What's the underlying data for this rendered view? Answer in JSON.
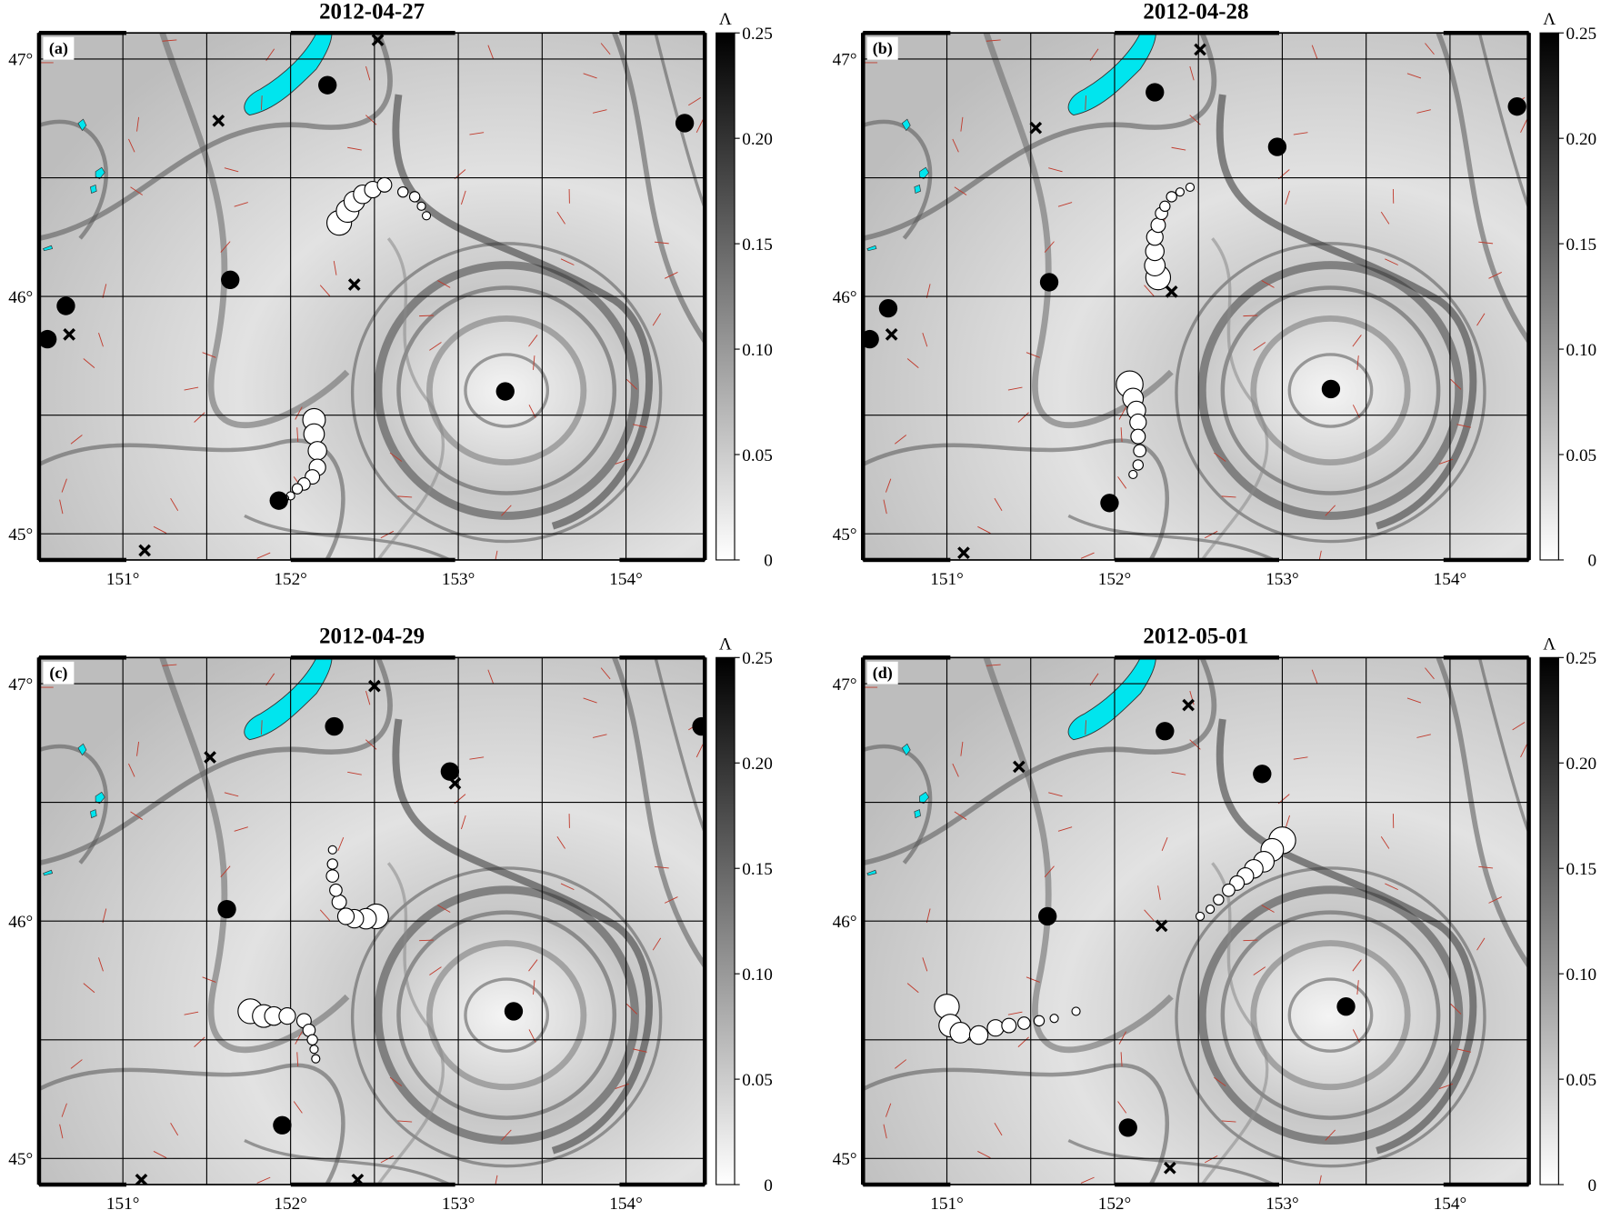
{
  "xlim": [
    150.5,
    154.47
  ],
  "ylim": [
    44.89,
    47.11
  ],
  "xticks": [
    {
      "value": 151,
      "label": "151°"
    },
    {
      "value": 152,
      "label": "152°"
    },
    {
      "value": 153,
      "label": "153°"
    },
    {
      "value": 154,
      "label": "154°"
    }
  ],
  "yticks": [
    {
      "value": 45,
      "label": "45°"
    },
    {
      "value": 46,
      "label": "46°"
    },
    {
      "value": 47,
      "label": "47°"
    }
  ],
  "xgrid": [
    151,
    151.5,
    152,
    152.5,
    153,
    153.5,
    154
  ],
  "ygrid": [
    45,
    45.5,
    46,
    46.5,
    47
  ],
  "colorbar": {
    "label": "Λ",
    "lim": [
      0,
      0.25
    ],
    "ticks": [
      0,
      0.05,
      {
        "value": 0.1,
        "label": "0.10"
      },
      0.15,
      {
        "value": 0.2,
        "label": "0.20"
      },
      0.25
    ]
  },
  "panels": [
    {
      "title": "2012-04-27",
      "label": "(a)",
      "dots": {
        "lon": [
          152.22,
          154.35,
          151.64,
          150.66,
          150.55,
          153.28,
          151.93
        ],
        "lat": [
          46.89,
          46.73,
          46.07,
          45.96,
          45.82,
          45.6,
          45.14
        ]
      },
      "crosses": {
        "lon": [
          152.52,
          151.57,
          152.38,
          150.68,
          151.13
        ],
        "lat": [
          47.08,
          46.74,
          46.05,
          45.84,
          44.93
        ]
      },
      "chains": [
        {
          "lon": [
            152.29,
            152.34,
            152.38,
            152.43,
            152.49,
            152.56,
            152.67,
            152.74,
            152.78,
            152.81
          ],
          "lat": [
            46.31,
            46.36,
            46.4,
            46.43,
            46.45,
            46.47,
            46.44,
            46.42,
            46.38,
            46.34
          ],
          "sizes": [
            12,
            11,
            10,
            9,
            8,
            7,
            5,
            5,
            4,
            4
          ]
        },
        {
          "lon": [
            152.14,
            152.14,
            152.16,
            152.16,
            152.13,
            152.08,
            152.04,
            152,
            151.97
          ],
          "lat": [
            45.48,
            45.42,
            45.35,
            45.28,
            45.24,
            45.21,
            45.19,
            45.16,
            45.15
          ],
          "sizes": [
            11,
            10,
            9,
            8,
            7,
            6,
            5,
            4,
            3
          ]
        }
      ]
    },
    {
      "title": "2012-04-28",
      "label": "(b)",
      "dots": {
        "lon": [
          152.24,
          154.4,
          152.97,
          151.61,
          150.65,
          150.54,
          153.29,
          151.97
        ],
        "lat": [
          46.86,
          46.8,
          46.63,
          46.06,
          45.95,
          45.82,
          45.61,
          45.13
        ]
      },
      "crosses": {
        "lon": [
          152.51,
          151.53,
          152.34,
          150.67,
          151.1
        ],
        "lat": [
          47.04,
          46.71,
          46.02,
          45.84,
          44.92
        ]
      },
      "chains": [
        {
          "lon": [
            152.26,
            152.24,
            152.24,
            152.24,
            152.26,
            152.28,
            152.3,
            152.34,
            152.39,
            152.45
          ],
          "lat": [
            46.08,
            46.13,
            46.19,
            46.25,
            46.3,
            46.35,
            46.38,
            46.42,
            46.44,
            46.46
          ],
          "sizes": [
            12,
            10,
            9,
            8,
            7,
            6,
            5,
            5,
            4,
            4
          ]
        },
        {
          "lon": [
            152.09,
            152.11,
            152.13,
            152.14,
            152.14,
            152.15,
            152.14,
            152.11
          ],
          "lat": [
            45.63,
            45.57,
            45.52,
            45.47,
            45.41,
            45.35,
            45.29,
            45.25
          ],
          "sizes": [
            13,
            10,
            9,
            8,
            7,
            6,
            5,
            4
          ]
        }
      ]
    },
    {
      "title": "2012-04-29",
      "label": "(c)",
      "dots": {
        "lon": [
          152.26,
          154.45,
          152.95,
          151.62,
          153.33,
          151.95
        ],
        "lat": [
          46.82,
          46.82,
          46.63,
          46.05,
          45.62,
          45.14
        ]
      },
      "crosses": {
        "lon": [
          152.5,
          151.52,
          152.98,
          151.11,
          152.4
        ],
        "lat": [
          46.99,
          46.69,
          46.58,
          44.91,
          44.91
        ]
      },
      "chains": [
        {
          "lon": [
            152.51,
            152.45,
            152.38,
            152.33,
            152.29,
            152.27,
            152.25,
            152.25,
            152.25
          ],
          "lat": [
            46.02,
            46.01,
            46.01,
            46.02,
            46.08,
            46.13,
            46.19,
            46.24,
            46.3
          ],
          "sizes": [
            12,
            10,
            9,
            8,
            7,
            6,
            6,
            5,
            4
          ]
        },
        {
          "lon": [
            151.76,
            151.84,
            151.9,
            151.98,
            152.08,
            152.11,
            152.13,
            152.14,
            152.15
          ],
          "lat": [
            45.62,
            45.6,
            45.6,
            45.6,
            45.58,
            45.54,
            45.5,
            45.46,
            45.42
          ],
          "sizes": [
            12,
            11,
            9,
            8,
            7,
            6,
            5,
            4,
            4
          ]
        }
      ]
    },
    {
      "title": "2012-05-01",
      "label": "(d)",
      "dots": {
        "lon": [
          152.3,
          152.88,
          151.6,
          153.38,
          152.08
        ],
        "lat": [
          46.8,
          46.62,
          46.02,
          45.64,
          45.13
        ]
      },
      "crosses": {
        "lon": [
          152.44,
          151.43,
          152.28,
          152.33
        ],
        "lat": [
          46.91,
          46.65,
          45.98,
          44.96
        ]
      },
      "chains": [
        {
          "lon": [
            153,
            152.94,
            152.89,
            152.83,
            152.78,
            152.73,
            152.68,
            152.62,
            152.57,
            152.51
          ],
          "lat": [
            46.34,
            46.3,
            46.25,
            46.22,
            46.19,
            46.16,
            46.13,
            46.09,
            46.05,
            46.02
          ],
          "sizes": [
            13,
            11,
            10,
            9,
            8,
            7,
            6,
            5,
            4,
            4
          ]
        },
        {
          "lon": [
            151,
            151.02,
            151.08,
            151.19,
            151.29,
            151.37,
            151.46,
            151.55,
            151.64,
            151.77
          ],
          "lat": [
            45.64,
            45.56,
            45.53,
            45.52,
            45.55,
            45.56,
            45.57,
            45.58,
            45.59,
            45.62
          ],
          "sizes": [
            12,
            11,
            10,
            9,
            8,
            7,
            6,
            5,
            4,
            4
          ]
        }
      ]
    }
  ]
}
